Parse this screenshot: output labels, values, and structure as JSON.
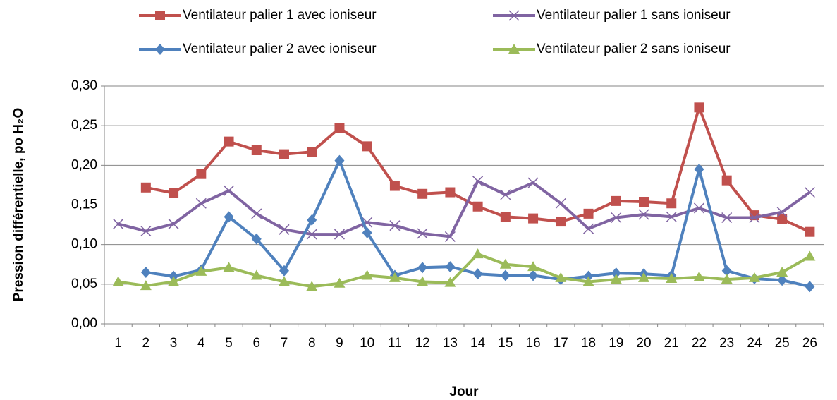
{
  "chart_data": {
    "type": "line",
    "x_label": "Jour",
    "y_label": "Pression différentielle, po H₂O",
    "categories": [
      "1",
      "2",
      "3",
      "4",
      "5",
      "6",
      "7",
      "8",
      "9",
      "10",
      "11",
      "12",
      "13",
      "14",
      "15",
      "16",
      "17",
      "18",
      "19",
      "20",
      "21",
      "22",
      "23",
      "24",
      "25",
      "26"
    ],
    "series": [
      {
        "name": "Ventilateur palier 1 avec ioniseur",
        "color": "#c0504d",
        "marker": "square",
        "values": [
          null,
          0.172,
          0.165,
          0.189,
          0.23,
          0.219,
          0.214,
          0.217,
          0.247,
          0.224,
          0.174,
          0.164,
          0.166,
          0.148,
          0.135,
          0.133,
          0.129,
          0.139,
          0.155,
          0.154,
          0.152,
          0.273,
          0.181,
          0.137,
          0.132,
          0.116
        ]
      },
      {
        "name": "Ventilateur palier 1 sans ioniseur",
        "color": "#8064a2",
        "marker": "x",
        "values": [
          0.126,
          0.117,
          0.126,
          0.152,
          0.168,
          0.139,
          0.119,
          0.113,
          0.113,
          0.128,
          0.124,
          0.114,
          0.11,
          0.18,
          0.163,
          0.178,
          0.152,
          0.12,
          0.134,
          0.138,
          0.135,
          0.146,
          0.134,
          0.134,
          0.141,
          0.166
        ]
      },
      {
        "name": "Ventilateur palier 2 avec ioniseur",
        "color": "#4f81bd",
        "marker": "diamond",
        "values": [
          null,
          0.065,
          0.06,
          0.068,
          0.135,
          0.107,
          0.067,
          0.131,
          0.206,
          0.115,
          0.061,
          0.071,
          0.072,
          0.063,
          0.061,
          0.061,
          0.056,
          0.06,
          0.064,
          0.063,
          0.061,
          0.195,
          0.067,
          0.057,
          0.055,
          0.047
        ]
      },
      {
        "name": "Ventilateur palier 2 sans ioniseur",
        "color": "#9bbb59",
        "marker": "triangle",
        "values": [
          0.053,
          0.048,
          0.053,
          0.066,
          0.071,
          0.061,
          0.053,
          0.047,
          0.051,
          0.061,
          0.058,
          0.053,
          0.052,
          0.088,
          0.075,
          0.072,
          0.058,
          0.053,
          0.056,
          0.058,
          0.057,
          0.059,
          0.056,
          0.058,
          0.065,
          0.085
        ]
      }
    ],
    "ylim": [
      0,
      0.3
    ],
    "yticks": [
      {
        "value": 0,
        "label": "0,00"
      },
      {
        "value": 0.05,
        "label": "0,05"
      },
      {
        "value": 0.1,
        "label": "0,10"
      },
      {
        "value": 0.15,
        "label": "0,15"
      },
      {
        "value": 0.2,
        "label": "0,20"
      },
      {
        "value": 0.25,
        "label": "0,25"
      },
      {
        "value": 0.3,
        "label": "0,30"
      }
    ],
    "grid": true,
    "legend": "top"
  }
}
